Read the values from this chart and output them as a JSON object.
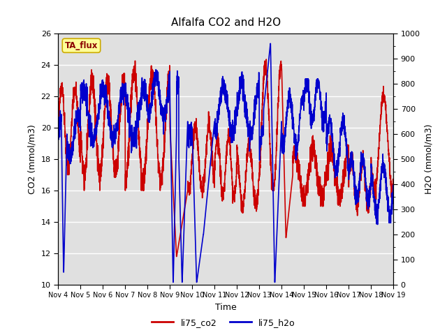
{
  "title": "Alfalfa CO2 and H2O",
  "xlabel": "Time",
  "ylabel_left": "CO2 (mmol/m3)",
  "ylabel_right": "H2O (mmol/m3)",
  "ylim_left": [
    10,
    26
  ],
  "ylim_right": [
    0,
    1000
  ],
  "yticks_left": [
    10,
    12,
    14,
    16,
    18,
    20,
    22,
    24,
    26
  ],
  "yticks_right": [
    0,
    100,
    200,
    300,
    400,
    500,
    600,
    700,
    800,
    900,
    1000
  ],
  "xtick_labels": [
    "Nov 4",
    "Nov 5",
    "Nov 6",
    "Nov 7",
    "Nov 8",
    "Nov 9",
    "Nov 10",
    "Nov 11",
    "Nov 12",
    "Nov 13",
    "Nov 14",
    "Nov 15",
    "Nov 16",
    "Nov 17",
    "Nov 18",
    "Nov 19"
  ],
  "legend_labels": [
    "li75_co2",
    "li75_h2o"
  ],
  "line_co2_color": "#cc0000",
  "line_h2o_color": "#0000cc",
  "fig_bg_color": "#ffffff",
  "plot_bg_color": "#e0e0e0",
  "annotation_text": "TA_flux",
  "annotation_bg": "#ffff99",
  "annotation_border": "#ccaa00",
  "title_fontsize": 11,
  "axis_label_fontsize": 9,
  "tick_fontsize": 8,
  "legend_fontsize": 9,
  "linewidth": 1.2
}
